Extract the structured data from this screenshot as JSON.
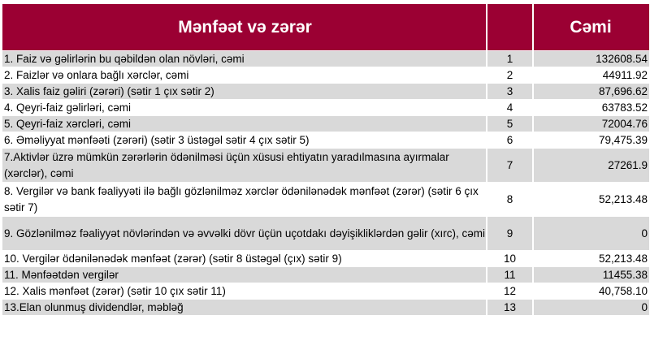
{
  "header": {
    "title": "Mənfəət və zərər",
    "number_col": "",
    "total_col": "Cəmi"
  },
  "colors": {
    "header_bg": "#9b0033",
    "row_gray": "#d9d9d9"
  },
  "rows": [
    {
      "label": "1. Faiz və gəlirlərin bu qəbildən olan növləri, cəmi",
      "num": "1",
      "value": "132608.54"
    },
    {
      "label": "2. Faizlər və onlara bağlı xərclər, cəmi",
      "num": "2",
      "value": "44911.92"
    },
    {
      "label": "3. Xalis faiz gəliri (zərəri) (sətir 1 çıx sətir 2)",
      "num": "3",
      "value": "87,696.62"
    },
    {
      "label": "4. Qeyri-faiz gəlirləri, cəmi",
      "num": "4",
      "value": "63783.52"
    },
    {
      "label": "5. Qeyri-faiz xərcləri, cəmi",
      "num": "5",
      "value": "72004.76"
    },
    {
      "label": "6. Əməliyyat mənfəəti (zərəri) (sətir 3 üstəgəl sətir 4 çıx sətir 5)",
      "num": "6",
      "value": "79,475.39"
    },
    {
      "label": "7.Aktivlər üzrə mümkün zərərlərin ödənilməsi üçün xüsusi ehtiyatın yaradılmasına ayırmalar (xərclər), cəmi",
      "num": "7",
      "value": "27261.9"
    },
    {
      "label": "8. Vergilər və bank fəaliyyəti ilə bağlı gözlənilməz xərclər ödənilənədək mənfəət (zərər) (sətir 6 çıx sətir 7)",
      "num": "8",
      "value": "52,213.48"
    },
    {
      "label": "9. Gözlənilməz fəaliyyət növlərindən və əvvəlki dövr üçün uçotdakı dəyişikliklərdən gəlir (xırc), cəmi",
      "num": "9",
      "value": "0"
    },
    {
      "label": "10. Vergilər ödənilənədək mənfəət (zərər) (sətir 8 üstəgəl (çıx) sətir 9)",
      "num": "10",
      "value": "52,213.48"
    },
    {
      "label": "11. Mənfəətdən vergilər",
      "num": "11",
      "value": "11455.38"
    },
    {
      "label": "12. Xalis mənfəət (zərər) (sətir 10 çıx sətir 11)",
      "num": "12",
      "value": "40,758.10"
    },
    {
      "label": "13.Elan olunmuş dividendlər, məbləğ",
      "num": "13",
      "value": "0"
    }
  ]
}
